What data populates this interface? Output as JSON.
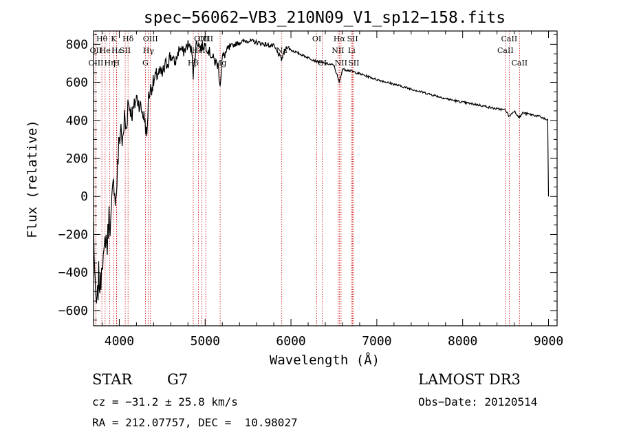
{
  "chart_data": {
    "type": "line",
    "title": "spec−56062−VB3_210N09_V1_sp12−158.fits",
    "xlabel": "Wavelength (Å)",
    "ylabel": "Flux (relative)",
    "xlim": [
      3700,
      9100
    ],
    "ylim": [
      -680,
      870
    ],
    "xticks": [
      4000,
      5000,
      6000,
      7000,
      8000,
      9000
    ],
    "xtick_labels": [
      "4000",
      "5000",
      "6000",
      "7000",
      "8000",
      "9000"
    ],
    "yticks": [
      -600,
      -400,
      -200,
      0,
      200,
      400,
      600,
      800
    ],
    "ytick_labels": [
      "−600",
      "−400",
      "−200",
      "0",
      "200",
      "400",
      "600",
      "800"
    ],
    "series": [
      {
        "name": "spectrum",
        "x": [
          3700,
          3720,
          3740,
          3760,
          3780,
          3800,
          3820,
          3840,
          3860,
          3880,
          3900,
          3920,
          3940,
          3960,
          3980,
          4000,
          4020,
          4040,
          4060,
          4080,
          4100,
          4150,
          4200,
          4250,
          4300,
          4320,
          4340,
          4360,
          4400,
          4450,
          4500,
          4550,
          4600,
          4650,
          4700,
          4750,
          4800,
          4850,
          4861,
          4900,
          4950,
          5000,
          5050,
          5100,
          5150,
          5175,
          5200,
          5300,
          5400,
          5500,
          5600,
          5700,
          5800,
          5890,
          5950,
          6000,
          6100,
          6200,
          6300,
          6400,
          6500,
          6563,
          6600,
          6700,
          6800,
          7000,
          7200,
          7400,
          7600,
          7800,
          8000,
          8200,
          8400,
          8500,
          8542,
          8600,
          8662,
          8700,
          8800,
          8900,
          8990,
          9000
        ],
        "y": [
          -150,
          -520,
          -590,
          -420,
          -480,
          -300,
          -350,
          -200,
          -260,
          -100,
          -150,
          0,
          80,
          -30,
          150,
          300,
          370,
          260,
          420,
          350,
          500,
          430,
          520,
          470,
          400,
          300,
          520,
          560,
          600,
          650,
          640,
          700,
          740,
          700,
          780,
          760,
          800,
          760,
          640,
          820,
          780,
          800,
          760,
          720,
          690,
          590,
          730,
          790,
          810,
          820,
          810,
          800,
          790,
          720,
          790,
          770,
          750,
          730,
          710,
          700,
          690,
          600,
          670,
          660,
          645,
          615,
          590,
          565,
          540,
          515,
          495,
          480,
          460,
          455,
          420,
          450,
          415,
          440,
          430,
          420,
          400,
          0
        ]
      }
    ],
    "line_markers": [
      {
        "wl": 3797,
        "label": "Hθ",
        "row": 1
      },
      {
        "wl": 3727,
        "label": "OII",
        "row": 2
      },
      {
        "wl": 3727,
        "label": "OIII",
        "row": 3
      },
      {
        "wl": 3835,
        "label": "He",
        "row": 2
      },
      {
        "wl": 3889,
        "label": "Hη",
        "row": 3
      },
      {
        "wl": 3934,
        "label": "K",
        "row": 1
      },
      {
        "wl": 3968,
        "label": "H",
        "row": 3
      },
      {
        "wl": 3970,
        "label": "Hε",
        "row": 2
      },
      {
        "wl": 4069,
        "label": "SII",
        "row": 2
      },
      {
        "wl": 4102,
        "label": "Hδ",
        "row": 1
      },
      {
        "wl": 4304,
        "label": "G",
        "row": 3
      },
      {
        "wl": 4340,
        "label": "Hγ",
        "row": 2
      },
      {
        "wl": 4363,
        "label": "OIII",
        "row": 1
      },
      {
        "wl": 4861,
        "label": "Hβ",
        "row": 3
      },
      {
        "wl": 4959,
        "label": "OIII",
        "row": 1
      },
      {
        "wl": 4922,
        "label": "Hei",
        "row": 2
      },
      {
        "wl": 5007,
        "label": "OIII",
        "row": 1
      },
      {
        "wl": 5175,
        "label": "Mg",
        "row": 3
      },
      {
        "wl": 5893,
        "label": "Na",
        "row": 2
      },
      {
        "wl": 6300,
        "label": "OI",
        "row": 1
      },
      {
        "wl": 6364,
        "label": "OI",
        "row": 3
      },
      {
        "wl": 6548,
        "label": "NII",
        "row": 2
      },
      {
        "wl": 6563,
        "label": "Hα",
        "row": 1
      },
      {
        "wl": 6583,
        "label": "NII",
        "row": 3
      },
      {
        "wl": 6707,
        "label": "Li",
        "row": 2
      },
      {
        "wl": 6717,
        "label": "SII",
        "row": 1
      },
      {
        "wl": 6731,
        "label": "SII",
        "row": 3
      },
      {
        "wl": 8498,
        "label": "CaII",
        "row": 2
      },
      {
        "wl": 8542,
        "label": "CaII",
        "row": 1
      },
      {
        "wl": 8662,
        "label": "CaII",
        "row": 3
      }
    ],
    "grid": false,
    "legend": "none"
  },
  "info": {
    "object_class": "STAR",
    "subclass": "G7",
    "survey": "LAMOST DR3",
    "cz": "cz = −31.2 ± 25.8 km/s",
    "obs_date": "Obs−Date: 20120514",
    "coords": "RA = 212.07757, DEC =  10.98027"
  },
  "colors": {
    "spectrum": "#000000",
    "line_marker": "#cc0000",
    "background": "#ffffff"
  }
}
